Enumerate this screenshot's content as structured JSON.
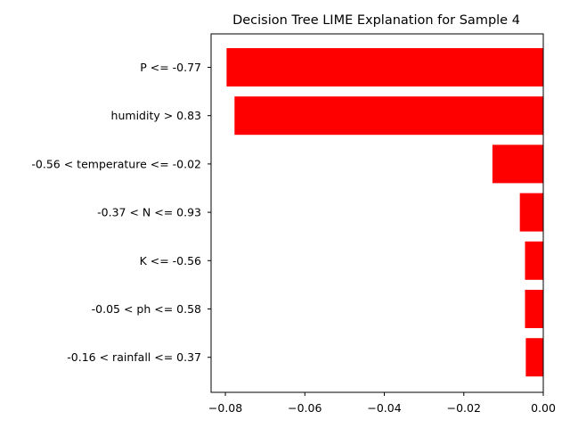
{
  "chart_data": {
    "type": "bar",
    "orientation": "horizontal",
    "title": "Decision Tree LIME Explanation for Sample 4",
    "xlabel": "",
    "ylabel": "",
    "categories": [
      "P <= -0.77",
      "humidity > 0.83",
      "-0.56 < temperature <= -0.02",
      "-0.37 < N <= 0.93",
      "K <= -0.56",
      "-0.05 < ph <= 0.58",
      "-0.16 < rainfall <= 0.37"
    ],
    "values": [
      -0.0797,
      -0.0777,
      -0.0128,
      -0.0059,
      -0.0046,
      -0.0046,
      -0.0044
    ],
    "xlim": [
      -0.0836,
      0.0
    ],
    "xticks": [
      -0.08,
      -0.06,
      -0.04,
      -0.02,
      0.0
    ],
    "xtick_labels": [
      "−0.08",
      "−0.06",
      "−0.04",
      "−0.02",
      "0.00"
    ],
    "bar_color": "#ff0000",
    "grid": false
  }
}
